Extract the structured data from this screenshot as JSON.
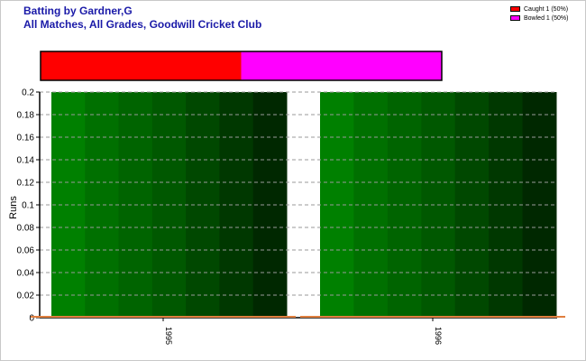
{
  "title_line1": "Batting by Gardner,G",
  "title_line2": "All Matches, All Grades, Goodwill Cricket Club",
  "legend": [
    {
      "label": "Caught 1 (50%)",
      "color": "#ff0000"
    },
    {
      "label": "Bowled 1 (50%)",
      "color": "#ff00ff"
    }
  ],
  "dismissal_bar": [
    {
      "name": "Caught",
      "fraction": 0.5,
      "color": "#ff0000"
    },
    {
      "name": "Bowled",
      "fraction": 0.5,
      "color": "#ff00ff"
    }
  ],
  "chart_data": {
    "type": "bar",
    "title": "",
    "xlabel": "",
    "ylabel": "Runs",
    "categories": [
      "1995",
      "1996"
    ],
    "series": [
      {
        "values": [
          0,
          0
        ]
      }
    ],
    "ylim": [
      0,
      0.2
    ],
    "yticks": [
      "0",
      "0.02",
      "0.04",
      "0.06",
      "0.08",
      "0.1",
      "0.12",
      "0.14",
      "0.16",
      "0.18",
      "0.2"
    ],
    "grid": true
  },
  "colors": {
    "title": "#1a1aa8",
    "panel_stripes": [
      "#008000",
      "#007000",
      "#006400",
      "#005800",
      "#004800",
      "#003800",
      "#002800"
    ],
    "bar_line": "#e07f3f"
  }
}
